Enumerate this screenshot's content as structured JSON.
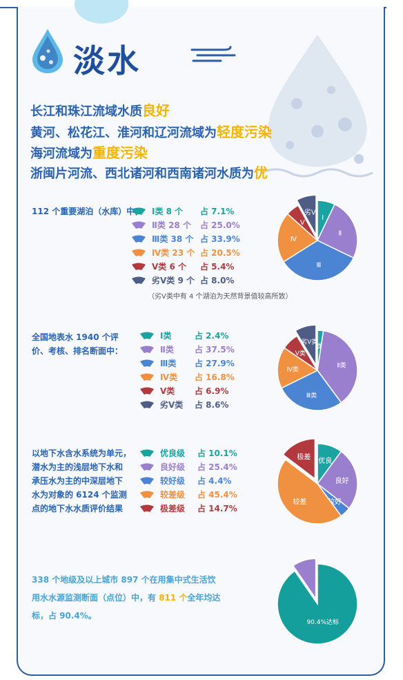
{
  "title": "淡水",
  "headlines": [
    {
      "pre": "长江和珠江流域水质",
      "hl": "良好",
      "post": ""
    },
    {
      "pre": "黄河、松花江、淮河和辽河流域为",
      "hl": "轻度污染",
      "post": ""
    },
    {
      "pre": "海河流域为",
      "hl": "重度污染",
      "post": ""
    },
    {
      "pre": "浙闽片河流、西北诸河和西南诸河水质为",
      "hl": "优",
      "post": ""
    }
  ],
  "colors": {
    "c1": "#1aa3a0",
    "c2": "#9b7fcf",
    "c3": "#4c84d4",
    "c4": "#ef9140",
    "c5": "#b23a3f",
    "c6": "#4f5d86"
  },
  "lakes": {
    "intro": "112 个重要湖泊（水库）中，",
    "items": [
      {
        "label": "Ⅰ类  8 个",
        "pct": "占 7.1%",
        "value": 7.1,
        "color": "#1aa3a0",
        "pie_label": "Ⅰ"
      },
      {
        "label": "Ⅱ类 28 个",
        "pct": "占 25.0%",
        "value": 25.0,
        "color": "#9b7fcf",
        "pie_label": "Ⅱ"
      },
      {
        "label": "Ⅲ类 38 个",
        "pct": "占 33.9%",
        "value": 33.9,
        "color": "#4c84d4",
        "pie_label": "Ⅲ"
      },
      {
        "label": "Ⅳ类 23 个",
        "pct": "占 20.5%",
        "value": 20.5,
        "color": "#ef9140",
        "pie_label": "Ⅳ"
      },
      {
        "label": "Ⅴ类  6 个",
        "pct": "占 5.4%",
        "value": 5.4,
        "color": "#b23a3f",
        "pie_label": "Ⅴ"
      },
      {
        "label": "劣Ⅴ类 9 个",
        "pct": "占 8.0%",
        "value": 8.0,
        "color": "#4f5d86",
        "pie_label": "劣Ⅴ"
      }
    ],
    "note": "（劣Ⅴ类中有 4 个湖泊为天然背景值较高所致）"
  },
  "surface": {
    "intro_lines": [
      "全国地表水 1940 个评",
      "价、考核、排名断面中："
    ],
    "items": [
      {
        "label": "Ⅰ类",
        "pct": "占 2.4%",
        "value": 2.4,
        "color": "#1aa3a0",
        "pie_label": "Ⅰ类"
      },
      {
        "label": "Ⅱ类",
        "pct": "占 37.5%",
        "value": 37.5,
        "color": "#9b7fcf",
        "pie_label": "Ⅱ类"
      },
      {
        "label": "Ⅲ类",
        "pct": "占 27.9%",
        "value": 27.9,
        "color": "#4c84d4",
        "pie_label": "Ⅲ类"
      },
      {
        "label": "Ⅳ类",
        "pct": "占 16.8%",
        "value": 16.8,
        "color": "#ef9140",
        "pie_label": "Ⅳ类"
      },
      {
        "label": "Ⅴ类",
        "pct": "占 6.9%",
        "value": 6.9,
        "color": "#b23a3f",
        "pie_label": "Ⅴ类"
      },
      {
        "label": "劣Ⅴ类",
        "pct": "占 8.6%",
        "value": 8.6,
        "color": "#4f5d86",
        "pie_label": "劣Ⅴ类"
      }
    ]
  },
  "ground": {
    "intro_lines": [
      "以地下水含水系统为单元，",
      "潜水为主的浅层地下水和",
      "承压水为主的中深层地下",
      "水为对象的 6124 个监测",
      "点的地下水水质评价结果"
    ],
    "items": [
      {
        "label": "优良级",
        "pct": "占 10.1%",
        "value": 10.1,
        "color": "#1aa3a0",
        "pie_label": "优良"
      },
      {
        "label": "良好级",
        "pct": "占 25.4%",
        "value": 25.4,
        "color": "#9b7fcf",
        "pie_label": "良好"
      },
      {
        "label": "较好级",
        "pct": "占 4.4%",
        "value": 4.4,
        "color": "#4c84d4",
        "pie_label": "较好"
      },
      {
        "label": "较差级",
        "pct": "占 45.4%",
        "value": 45.4,
        "color": "#ef9140",
        "pie_label": "较差"
      },
      {
        "label": "极差级",
        "pct": "占 14.7%",
        "value": 14.7,
        "color": "#b23a3f",
        "pie_label": "极差"
      }
    ]
  },
  "drinking": {
    "line1": "338 个地级及以上城市 897 个在用集中式生活饮",
    "line2_pre": "用水水源监测断面（点位）中，有 ",
    "line2_hl": "811 个",
    "line2_post": "全年均达",
    "line3": "标，占 90.4%。",
    "items": [
      {
        "value": 90.4,
        "color": "#149e9c",
        "pie_label": "90.4%达标"
      },
      {
        "value": 9.6,
        "color": "#9b7fcf",
        "pie_label": ""
      }
    ]
  }
}
